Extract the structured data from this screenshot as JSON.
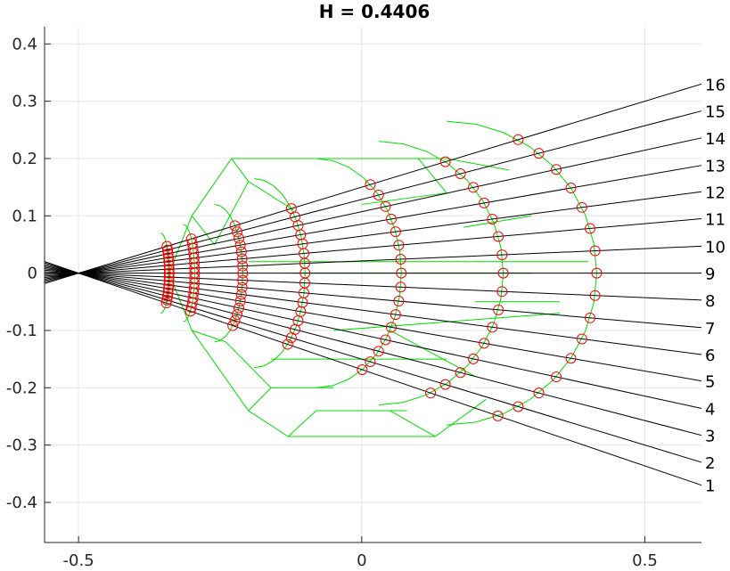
{
  "chart_data": {
    "type": "line",
    "title": "H = 0.4406",
    "xlim": [
      -0.56,
      0.6
    ],
    "ylim": [
      -0.47,
      0.43
    ],
    "xticks": [
      -0.5,
      0,
      0.5
    ],
    "xtick_labels": [
      "-0.5",
      "0",
      "0.5"
    ],
    "yticks": [
      0.4,
      0.3,
      0.2,
      0.1,
      0,
      -0.1,
      -0.2,
      -0.3,
      -0.4
    ],
    "ytick_labels": [
      "0.4",
      "0.3",
      "0.2",
      "0.1",
      "0",
      "-0.1",
      "-0.2",
      "-0.3",
      "-0.4"
    ],
    "grid": true,
    "colors": {
      "rays": "#000000",
      "mesh": "#00dd00",
      "markers": "#ff0000",
      "grid": "#e6e6e6",
      "axis": "#262626"
    },
    "rays": {
      "origin": [
        -0.5,
        0
      ],
      "end_x": 0.6,
      "labels": [
        "1",
        "2",
        "3",
        "4",
        "5",
        "6",
        "7",
        "8",
        "9",
        "10",
        "11",
        "12",
        "13",
        "14",
        "15",
        "16"
      ],
      "end_y": [
        -0.37,
        -0.33,
        -0.283,
        -0.236,
        -0.188,
        -0.142,
        -0.095,
        -0.047,
        0.0,
        0.047,
        0.095,
        0.142,
        0.188,
        0.236,
        0.283,
        0.33
      ]
    },
    "rings": [
      {
        "cx": -0.355,
        "rx": 0.015,
        "ry": 0.07
      },
      {
        "cx": -0.315,
        "rx": 0.02,
        "ry": 0.085
      },
      {
        "cx": -0.26,
        "rx": 0.05,
        "ry": 0.12
      },
      {
        "cx": -0.19,
        "rx": 0.09,
        "ry": 0.165
      },
      {
        "cx": -0.08,
        "rx": 0.15,
        "ry": 0.2
      },
      {
        "cx": 0.03,
        "rx": 0.22,
        "ry": 0.23
      },
      {
        "cx": 0.15,
        "rx": 0.265,
        "ry": 0.265
      }
    ],
    "mesh_edges": [
      [
        [
          -0.3,
          0.1
        ],
        [
          -0.23,
          0.2
        ]
      ],
      [
        [
          -0.23,
          0.2
        ],
        [
          0.15,
          0.2
        ]
      ],
      [
        [
          0.15,
          0.2
        ],
        [
          0.26,
          0.18
        ]
      ],
      [
        [
          -0.3,
          0.1
        ],
        [
          -0.34,
          0.0
        ]
      ],
      [
        [
          -0.34,
          0.0
        ],
        [
          -0.3,
          -0.1
        ]
      ],
      [
        [
          -0.3,
          -0.1
        ],
        [
          -0.2,
          -0.24
        ]
      ],
      [
        [
          -0.2,
          -0.24
        ],
        [
          -0.13,
          -0.285
        ]
      ],
      [
        [
          -0.13,
          -0.285
        ],
        [
          0.13,
          -0.285
        ]
      ],
      [
        [
          0.13,
          -0.285
        ],
        [
          0.22,
          -0.22
        ]
      ],
      [
        [
          -0.08,
          -0.24
        ],
        [
          0.08,
          -0.24
        ]
      ],
      [
        [
          -0.26,
          0.05
        ],
        [
          -0.2,
          0.16
        ]
      ],
      [
        [
          -0.2,
          0.16
        ],
        [
          -0.12,
          0.11
        ]
      ],
      [
        [
          -0.24,
          -0.12
        ],
        [
          -0.16,
          -0.2
        ]
      ],
      [
        [
          -0.16,
          -0.2
        ],
        [
          -0.05,
          -0.2
        ]
      ],
      [
        [
          0.0,
          0.12
        ],
        [
          0.15,
          0.14
        ]
      ],
      [
        [
          -0.12,
          0.0
        ],
        [
          0.3,
          0.0
        ]
      ],
      [
        [
          -0.2,
          0.02
        ],
        [
          0.4,
          0.02
        ]
      ],
      [
        [
          -0.05,
          -0.1
        ],
        [
          0.35,
          -0.07
        ]
      ],
      [
        [
          -0.16,
          -0.15
        ],
        [
          0.15,
          -0.15
        ]
      ],
      [
        [
          -0.23,
          0.2
        ],
        [
          -0.2,
          0.16
        ]
      ],
      [
        [
          -0.3,
          0.1
        ],
        [
          -0.26,
          0.05
        ]
      ],
      [
        [
          -0.3,
          -0.1
        ],
        [
          -0.24,
          -0.12
        ]
      ],
      [
        [
          -0.2,
          -0.24
        ],
        [
          -0.16,
          -0.2
        ]
      ],
      [
        [
          0.05,
          -0.24
        ],
        [
          0.13,
          -0.285
        ]
      ],
      [
        [
          -0.08,
          -0.24
        ],
        [
          -0.13,
          -0.285
        ]
      ],
      [
        [
          0.1,
          0.2
        ],
        [
          0.15,
          0.14
        ]
      ],
      [
        [
          0.18,
          0.08
        ],
        [
          0.3,
          0.1
        ]
      ],
      [
        [
          0.05,
          -0.1
        ],
        [
          0.2,
          -0.18
        ]
      ],
      [
        [
          0.2,
          -0.05
        ],
        [
          0.35,
          -0.05
        ]
      ]
    ]
  }
}
